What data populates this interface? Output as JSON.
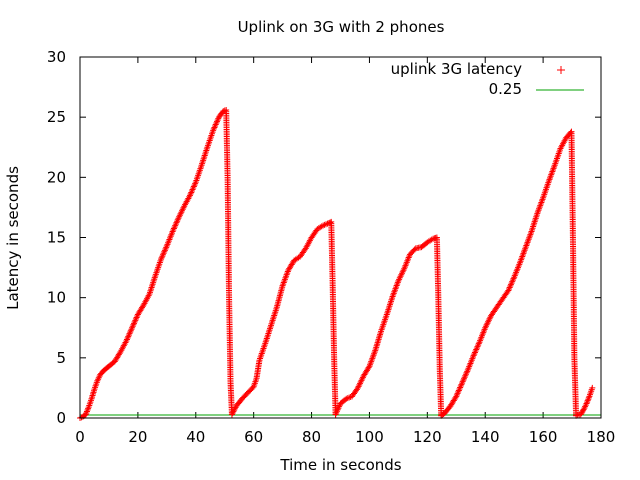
{
  "chart_data": {
    "type": "scatter",
    "title": "Uplink on 3G with 2 phones",
    "xlabel": "Time in seconds",
    "ylabel": "Latency in seconds",
    "xlim": [
      0,
      180
    ],
    "ylim": [
      0,
      30
    ],
    "x_ticks": [
      "0",
      "20",
      "40",
      "60",
      "80",
      "100",
      "120",
      "140",
      "160",
      "180"
    ],
    "y_ticks": [
      "0",
      "5",
      "10",
      "15",
      "20",
      "25",
      "30"
    ],
    "grid": false,
    "legend_position": "top-right",
    "series": [
      {
        "name": "uplink 3G latency",
        "type": "scatter",
        "marker": "+",
        "color": "#ff0000",
        "segments": [
          [
            [
              0,
              0
            ],
            [
              1,
              0.1
            ],
            [
              2,
              0.3
            ],
            [
              3,
              0.9
            ],
            [
              4,
              1.6
            ],
            [
              5,
              2.4
            ],
            [
              6,
              3.1
            ],
            [
              7,
              3.6
            ],
            [
              8,
              3.9
            ],
            [
              9,
              4.1
            ],
            [
              10,
              4.3
            ],
            [
              12,
              4.7
            ],
            [
              14,
              5.5
            ],
            [
              16,
              6.4
            ],
            [
              18,
              7.5
            ],
            [
              20,
              8.6
            ],
            [
              22,
              9.4
            ],
            [
              24,
              10.3
            ],
            [
              26,
              11.8
            ],
            [
              28,
              13.2
            ],
            [
              30,
              14.3
            ],
            [
              32,
              15.5
            ],
            [
              34,
              16.6
            ],
            [
              36,
              17.6
            ],
            [
              38,
              18.5
            ],
            [
              40,
              19.6
            ],
            [
              42,
              21.0
            ],
            [
              44,
              22.5
            ],
            [
              46,
              23.9
            ],
            [
              48,
              25.0
            ],
            [
              49.5,
              25.5
            ],
            [
              50.5,
              25.6
            ],
            [
              51,
              20
            ],
            [
              51.5,
              10
            ],
            [
              52,
              3
            ],
            [
              52.5,
              0.3
            ]
          ],
          [
            [
              52.5,
              0.3
            ],
            [
              54,
              1.0
            ],
            [
              56,
              1.6
            ],
            [
              58,
              2.1
            ],
            [
              60,
              2.6
            ],
            [
              61,
              3.3
            ],
            [
              62,
              4.8
            ],
            [
              64,
              6.2
            ],
            [
              66,
              7.7
            ],
            [
              68,
              9.2
            ],
            [
              70,
              11.0
            ],
            [
              72,
              12.3
            ],
            [
              74,
              13.1
            ],
            [
              76,
              13.4
            ],
            [
              78,
              14.1
            ],
            [
              80,
              15.0
            ],
            [
              82,
              15.7
            ],
            [
              84,
              16.0
            ],
            [
              86,
              16.2
            ],
            [
              86.8,
              16.3
            ],
            [
              87.3,
              11
            ],
            [
              87.8,
              5
            ],
            [
              88.3,
              0.3
            ]
          ],
          [
            [
              88.3,
              0.3
            ],
            [
              90,
              1.2
            ],
            [
              92,
              1.6
            ],
            [
              94,
              1.8
            ],
            [
              96,
              2.5
            ],
            [
              98,
              3.5
            ],
            [
              100,
              4.3
            ],
            [
              102,
              5.6
            ],
            [
              104,
              7.2
            ],
            [
              106,
              8.6
            ],
            [
              108,
              10.1
            ],
            [
              110,
              11.4
            ],
            [
              112,
              12.4
            ],
            [
              114,
              13.6
            ],
            [
              116,
              14.1
            ],
            [
              118,
              14.2
            ],
            [
              120,
              14.6
            ],
            [
              122,
              14.9
            ],
            [
              123.3,
              15.0
            ],
            [
              123.8,
              10
            ],
            [
              124.3,
              4
            ],
            [
              124.8,
              0.2
            ]
          ],
          [
            [
              124.8,
              0.2
            ],
            [
              126,
              0.4
            ],
            [
              128,
              1.0
            ],
            [
              130,
              1.8
            ],
            [
              132,
              2.9
            ],
            [
              134,
              4.0
            ],
            [
              136,
              5.2
            ],
            [
              138,
              6.3
            ],
            [
              140,
              7.5
            ],
            [
              142,
              8.5
            ],
            [
              144,
              9.2
            ],
            [
              146,
              9.9
            ],
            [
              148,
              10.6
            ],
            [
              150,
              11.7
            ],
            [
              152,
              12.9
            ],
            [
              154,
              14.2
            ],
            [
              156,
              15.5
            ],
            [
              158,
              17.0
            ],
            [
              160,
              18.3
            ],
            [
              162,
              19.7
            ],
            [
              164,
              21.0
            ],
            [
              166,
              22.4
            ],
            [
              168,
              23.3
            ],
            [
              169.8,
              23.8
            ],
            [
              170.3,
              15
            ],
            [
              170.8,
              5
            ],
            [
              171.4,
              0.2
            ]
          ],
          [
            [
              171.4,
              0.2
            ],
            [
              173,
              0.3
            ],
            [
              174,
              0.7
            ],
            [
              175,
              1.2
            ],
            [
              176,
              1.8
            ],
            [
              177,
              2.5
            ]
          ]
        ]
      },
      {
        "name": "0.25",
        "type": "line",
        "color": "#00a000",
        "constant": 0.25
      }
    ]
  }
}
